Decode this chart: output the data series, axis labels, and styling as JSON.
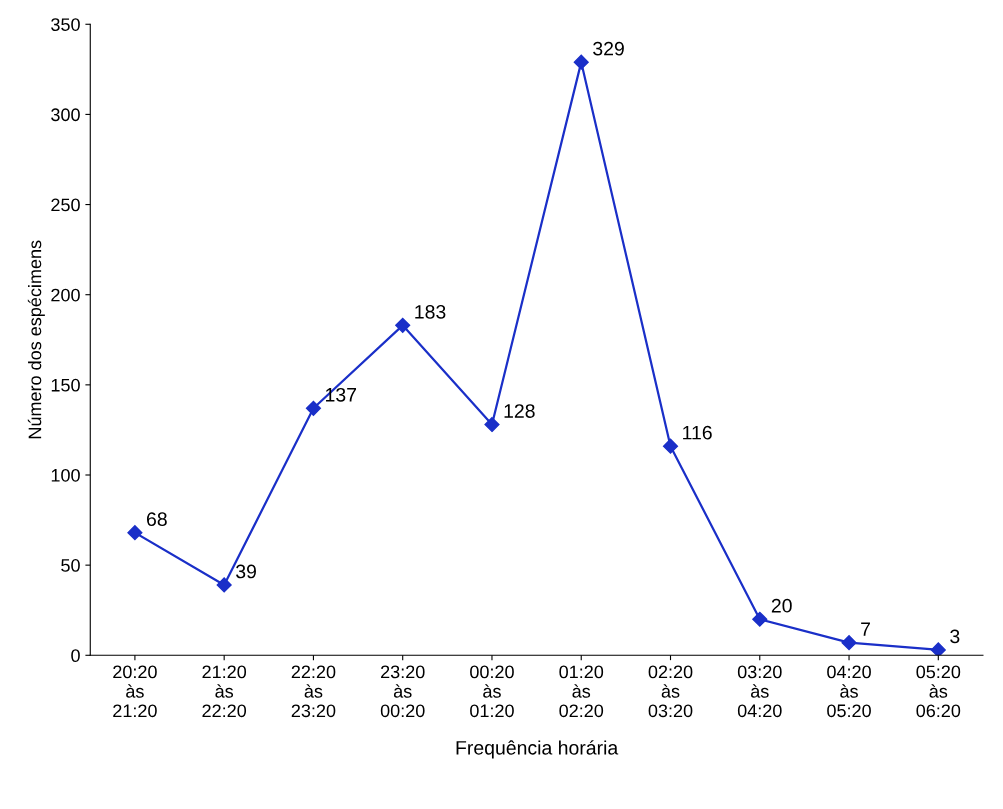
{
  "chart_data": {
    "type": "line",
    "xlabel": "Frequência horária",
    "ylabel": "Número dos espécimens",
    "categories": [
      "20:20\nàs\n21:20",
      "21:20\nàs\n22:20",
      "22:20\nàs\n23:20",
      "23:20\nàs\n00:20",
      "00:20\nàs\n01:20",
      "01:20\nàs\n02:20",
      "02:20\nàs\n03:20",
      "03:20\nàs\n04:20",
      "04:20\nàs\n05:20",
      "05:20\nàs\n06:20"
    ],
    "series": [
      {
        "color": "#1a2fc8",
        "values": [
          68,
          39,
          137,
          183,
          128,
          329,
          116,
          20,
          7,
          3
        ]
      }
    ],
    "ylim": [
      0,
      350
    ],
    "yticks": [
      0,
      50,
      100,
      150,
      200,
      250,
      300,
      350
    ],
    "data_labels": true,
    "marker": "diamond",
    "line_style": "solid",
    "grid": false,
    "legend": false
  }
}
